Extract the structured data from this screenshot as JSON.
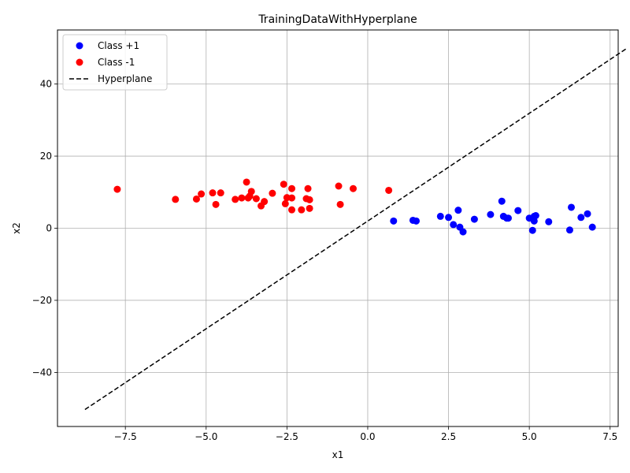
{
  "chart_data": {
    "type": "scatter",
    "title": "TrainingDataWithHyperplane",
    "xlabel": "x1",
    "ylabel": "x2",
    "xlim": [
      -9.6,
      7.75
    ],
    "ylim": [
      -55,
      55
    ],
    "xticks": [
      -7.5,
      -5.0,
      -2.5,
      0.0,
      2.5,
      5.0,
      7.5
    ],
    "xtick_labels": [
      "−7.5",
      "−5.0",
      "−2.5",
      "0.0",
      "2.5",
      "5.0",
      "7.5"
    ],
    "yticks": [
      -40,
      -20,
      0,
      20,
      40
    ],
    "ytick_labels": [
      "−40",
      "−20",
      "0",
      "20",
      "40"
    ],
    "grid": true,
    "legend": "top-left",
    "series": [
      {
        "name": "Class +1",
        "kind": "scatter",
        "color": "#0000ff",
        "points": [
          [
            0.8,
            2.0
          ],
          [
            1.4,
            2.2
          ],
          [
            1.5,
            2.0
          ],
          [
            2.25,
            3.3
          ],
          [
            2.5,
            3.0
          ],
          [
            2.65,
            1.0
          ],
          [
            2.8,
            5.0
          ],
          [
            2.85,
            0.3
          ],
          [
            2.95,
            -1.0
          ],
          [
            3.3,
            2.5
          ],
          [
            3.8,
            3.8
          ],
          [
            4.15,
            7.5
          ],
          [
            4.2,
            3.3
          ],
          [
            4.3,
            2.8
          ],
          [
            4.35,
            2.8
          ],
          [
            4.65,
            4.9
          ],
          [
            5.0,
            2.8
          ],
          [
            5.1,
            -0.6
          ],
          [
            5.15,
            2.0
          ],
          [
            5.2,
            3.5
          ],
          [
            5.15,
            3.3
          ],
          [
            5.6,
            1.8
          ],
          [
            6.3,
            5.8
          ],
          [
            6.25,
            -0.5
          ],
          [
            6.6,
            3.0
          ],
          [
            6.8,
            4.0
          ],
          [
            6.95,
            0.3
          ]
        ]
      },
      {
        "name": "Class -1",
        "kind": "scatter",
        "color": "#ff0000",
        "points": [
          [
            -7.75,
            10.8
          ],
          [
            -5.95,
            8.0
          ],
          [
            -5.3,
            8.1
          ],
          [
            -5.15,
            9.5
          ],
          [
            -4.8,
            9.8
          ],
          [
            -4.7,
            6.6
          ],
          [
            -4.55,
            9.8
          ],
          [
            -4.1,
            8.0
          ],
          [
            -3.9,
            8.4
          ],
          [
            -3.75,
            12.8
          ],
          [
            -3.7,
            8.4
          ],
          [
            -3.65,
            8.9
          ],
          [
            -3.6,
            10.2
          ],
          [
            -3.45,
            8.2
          ],
          [
            -3.3,
            6.2
          ],
          [
            -3.2,
            7.4
          ],
          [
            -2.95,
            9.7
          ],
          [
            -2.6,
            12.2
          ],
          [
            -2.55,
            6.8
          ],
          [
            -2.5,
            8.5
          ],
          [
            -2.35,
            11.0
          ],
          [
            -2.35,
            8.4
          ],
          [
            -2.35,
            5.1
          ],
          [
            -2.05,
            5.1
          ],
          [
            -1.9,
            8.2
          ],
          [
            -1.85,
            11.0
          ],
          [
            -1.8,
            5.5
          ],
          [
            -1.8,
            7.9
          ],
          [
            -0.9,
            11.7
          ],
          [
            -0.85,
            6.6
          ],
          [
            -0.45,
            11.0
          ],
          [
            0.65,
            10.5
          ]
        ]
      },
      {
        "name": "Hyperplane",
        "kind": "line",
        "style": "dashed",
        "color": "#000000",
        "x": [
          -8.75,
          8.0
        ],
        "y": [
          -50.3,
          49.8
        ]
      }
    ]
  }
}
